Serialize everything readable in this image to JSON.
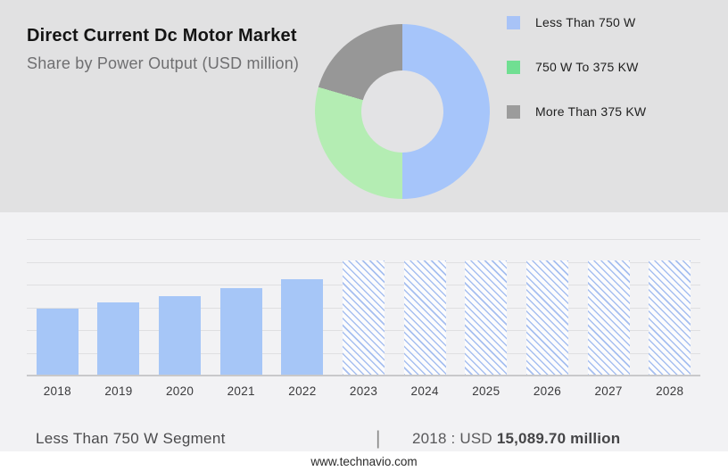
{
  "header": {
    "title": "Direct Current Dc Motor Market",
    "subtitle": "Share by Power Output (USD million)"
  },
  "colors": {
    "top_bg": "#e1e1e2",
    "panel_bg": "#f2f2f4",
    "donut_blue": "#a6c5fa",
    "donut_green": "#b4edb3",
    "donut_gray": "#979797",
    "legend_blue": "#a8c3f7",
    "legend_green": "#70df92",
    "legend_gray": "#9c9c9c",
    "bar_blue": "#a6c6f7",
    "hatch_line_blue": "#82a5eb",
    "gridline": "#dfdfe1",
    "axis_line": "#c8c8ca"
  },
  "chart_data": [
    {
      "type": "pie",
      "subtype": "donut",
      "title": "Share by Power Output (USD million)",
      "legend_position": "right",
      "slices": [
        {
          "label": "Less Than 750 W",
          "value_pct": 50.0,
          "color": "#a6c5fa",
          "legend_color": "#a8c3f7"
        },
        {
          "label": "750 W To 375 KW",
          "value_pct": 29.5,
          "color": "#b4edb3",
          "legend_color": "#70df92"
        },
        {
          "label": "More Than 375 KW",
          "value_pct": 20.5,
          "color": "#979797",
          "legend_color": "#9c9c9c"
        }
      ]
    },
    {
      "type": "bar",
      "categories": [
        "2018",
        "2019",
        "2020",
        "2021",
        "2022",
        "2023",
        "2024",
        "2025",
        "2026",
        "2027",
        "2028"
      ],
      "values_usd_million_est": [
        15089.7,
        16500,
        17900,
        19700,
        21700,
        26000,
        26000,
        26000,
        26000,
        26000,
        26000
      ],
      "forecast_flags": [
        false,
        false,
        false,
        false,
        false,
        true,
        true,
        true,
        true,
        true,
        true
      ],
      "labeled_value": {
        "year": "2018",
        "text": "USD 15,089.70 million"
      },
      "ylim": [
        0,
        30850
      ],
      "xlabel": "",
      "ylabel": "",
      "grid": "horizontal",
      "gridline_count": 6,
      "legend_position": "none"
    }
  ],
  "caption": {
    "segment_label": "Less Than 750 W Segment",
    "separator": "|",
    "value_prefix": "2018 : USD ",
    "value_bold": "15,089.70 million"
  },
  "footer": {
    "url": "www.technavio.com"
  }
}
